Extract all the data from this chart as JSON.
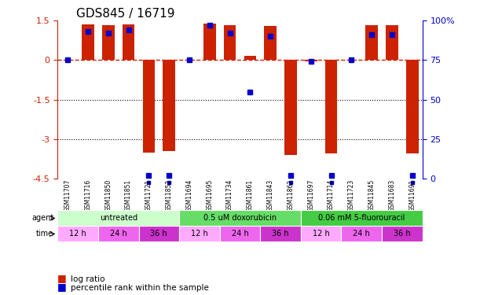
{
  "title": "GDS845 / 16719",
  "samples": [
    "GSM11707",
    "GSM11716",
    "GSM11850",
    "GSM11851",
    "GSM11721",
    "GSM11852",
    "GSM11694",
    "GSM11695",
    "GSM11734",
    "GSM11861",
    "GSM11843",
    "GSM11862",
    "GSM11697",
    "GSM11714",
    "GSM11723",
    "GSM11845",
    "GSM11683",
    "GSM11691"
  ],
  "log_ratio": [
    0.0,
    1.35,
    1.32,
    1.35,
    -3.5,
    -3.45,
    0.0,
    1.38,
    1.32,
    0.15,
    1.3,
    -3.6,
    -0.05,
    -3.55,
    0.0,
    1.32,
    1.32,
    -3.55
  ],
  "percentile": [
    75,
    93,
    92,
    94,
    2,
    2,
    75,
    97,
    92,
    55,
    90,
    2,
    74,
    2,
    75,
    91,
    91,
    2
  ],
  "agents": [
    {
      "label": "untreated",
      "start": 0,
      "end": 6,
      "color": "#ccffcc"
    },
    {
      "label": "0.5 uM doxorubicin",
      "start": 6,
      "end": 12,
      "color": "#66dd66"
    },
    {
      "label": "0.06 mM 5-fluorouracil",
      "start": 12,
      "end": 18,
      "color": "#44cc44"
    }
  ],
  "times": [
    {
      "label": "12 h",
      "start": 0,
      "end": 2,
      "color": "#ffaaff"
    },
    {
      "label": "24 h",
      "start": 2,
      "end": 4,
      "color": "#ee66ee"
    },
    {
      "label": "36 h",
      "start": 4,
      "end": 6,
      "color": "#cc33cc"
    },
    {
      "label": "12 h",
      "start": 6,
      "end": 8,
      "color": "#ffaaff"
    },
    {
      "label": "24 h",
      "start": 8,
      "end": 10,
      "color": "#ee66ee"
    },
    {
      "label": "36 h",
      "start": 10,
      "end": 12,
      "color": "#cc33cc"
    },
    {
      "label": "12 h",
      "start": 12,
      "end": 14,
      "color": "#ffaaff"
    },
    {
      "label": "24 h",
      "start": 14,
      "end": 16,
      "color": "#ee66ee"
    },
    {
      "label": "36 h",
      "start": 16,
      "end": 18,
      "color": "#cc33cc"
    }
  ],
  "ylim_left": [
    -4.5,
    1.5
  ],
  "ylim_right": [
    0,
    100
  ],
  "yticks_left": [
    1.5,
    0,
    -1.5,
    -3,
    -4.5
  ],
  "yticks_right": [
    100,
    75,
    50,
    25,
    0
  ],
  "bar_color": "#cc2200",
  "dot_color": "#0000cc",
  "zero_line_color": "#cc2200",
  "bg_color": "#ffffff",
  "sample_bg": "#d0d0d0"
}
